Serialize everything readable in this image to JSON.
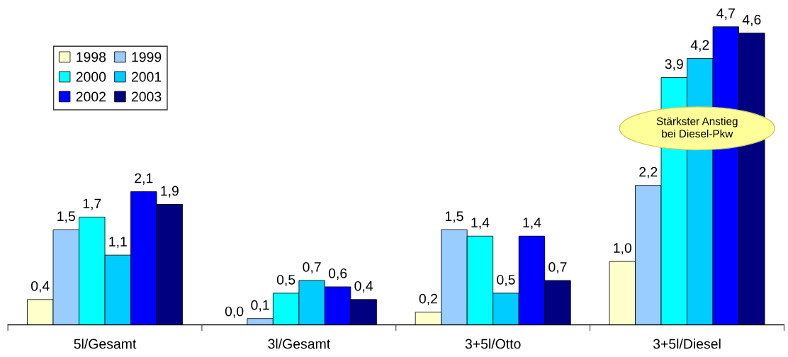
{
  "chart_data": {
    "type": "bar",
    "categories": [
      "5l/Gesamt",
      "3l/Gesamt",
      "3+5l/Otto",
      "3+5l/Diesel"
    ],
    "series": [
      {
        "name": "1998",
        "color": "#ffffcc",
        "values": [
          0.4,
          0.0,
          0.2,
          1.0
        ],
        "value_labels": [
          "0,4",
          "0,0",
          "0,2",
          "1,0"
        ]
      },
      {
        "name": "1999",
        "color": "#99ccff",
        "values": [
          1.5,
          0.1,
          1.5,
          2.2
        ],
        "value_labels": [
          "1,5",
          "0,1",
          "1,5",
          "2,2"
        ]
      },
      {
        "name": "2000",
        "color": "#00ffff",
        "values": [
          1.7,
          0.5,
          1.4,
          3.9
        ],
        "value_labels": [
          "1,7",
          "0,5",
          "1,4",
          "3,9"
        ]
      },
      {
        "name": "2001",
        "color": "#00ccff",
        "values": [
          1.1,
          0.7,
          0.5,
          4.2
        ],
        "value_labels": [
          "1,1",
          "0,7",
          "0,5",
          "4,2"
        ]
      },
      {
        "name": "2002",
        "color": "#0000ff",
        "values": [
          2.1,
          0.6,
          1.4,
          4.7
        ],
        "value_labels": [
          "2,1",
          "0,6",
          "1,4",
          "4,7"
        ]
      },
      {
        "name": "2003",
        "color": "#000080",
        "values": [
          1.9,
          0.4,
          0.7,
          4.6
        ],
        "value_labels": [
          "1,9",
          "0,4",
          "0,7",
          "4,6"
        ]
      }
    ],
    "legend": "top left",
    "grid": false,
    "annotations": [
      "Stärkster Anstieg bei Diesel-Pkw"
    ]
  }
}
